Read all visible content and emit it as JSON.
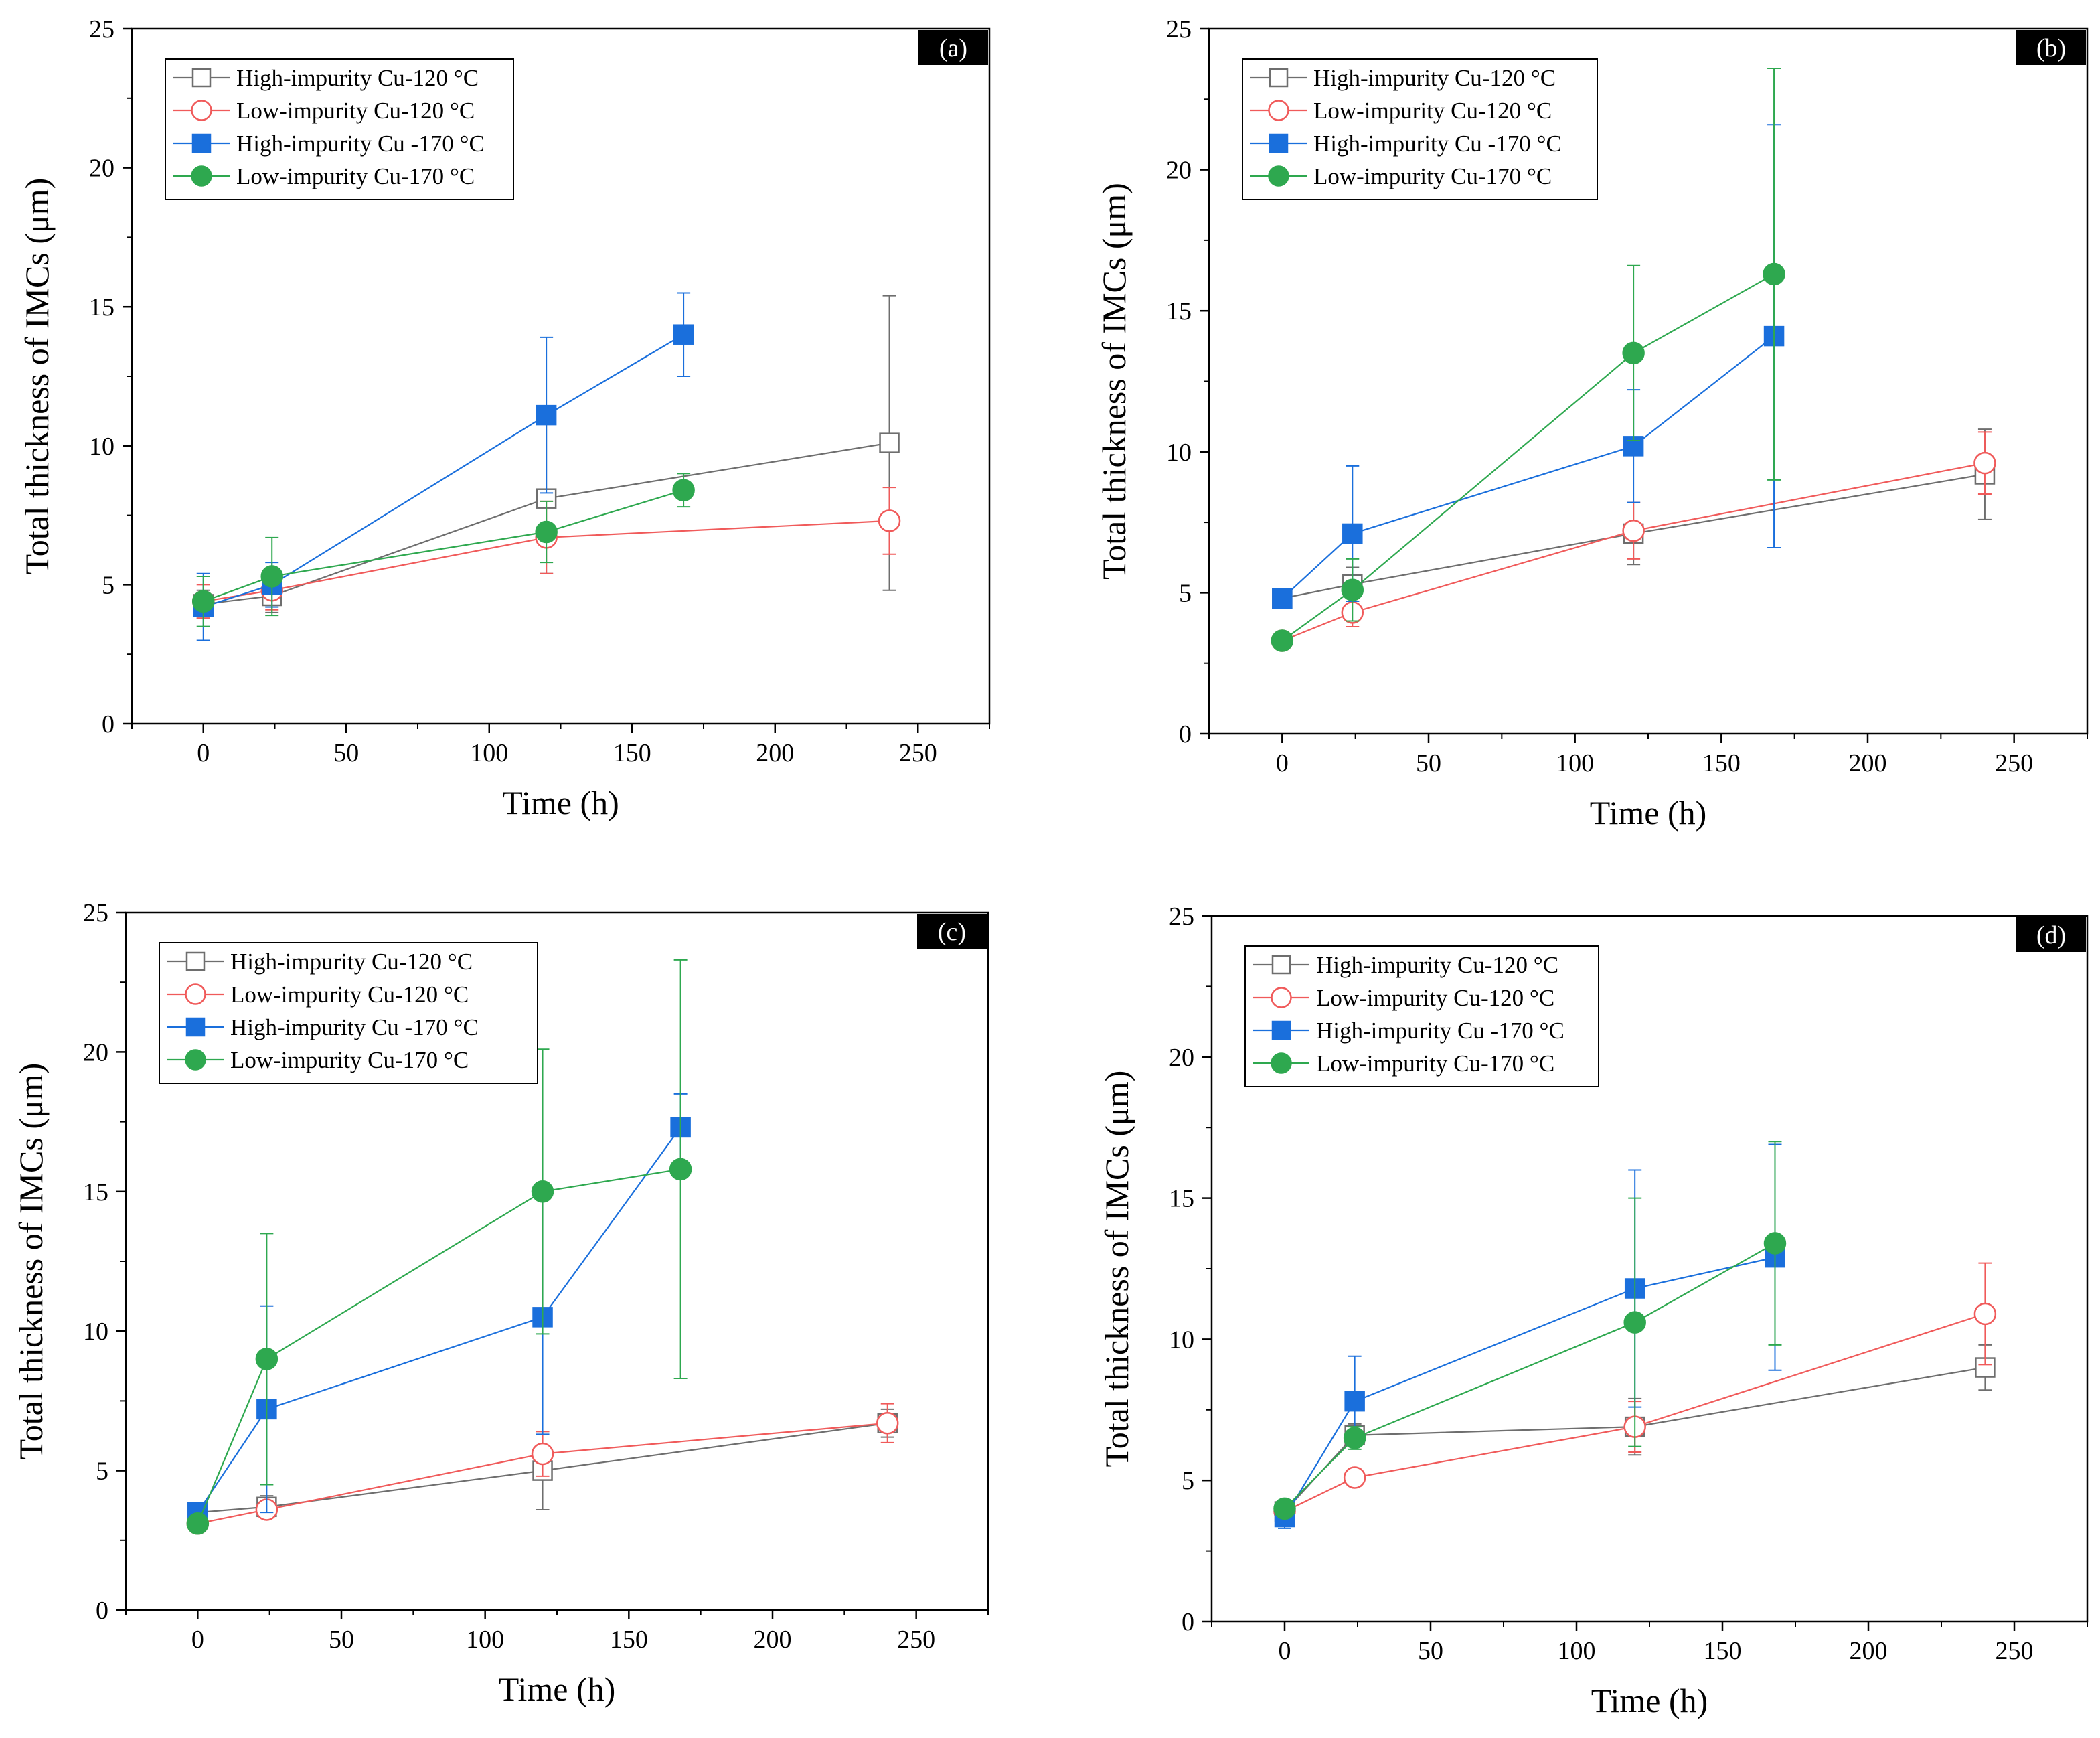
{
  "figure": {
    "series_styles": [
      {
        "marker": "square",
        "filled": false,
        "color": "#6e6e6e"
      },
      {
        "marker": "circle",
        "filled": false,
        "color": "#f05a5a"
      },
      {
        "marker": "square",
        "filled": true,
        "color": "#1a6fdc"
      },
      {
        "marker": "circle",
        "filled": true,
        "color": "#2ea84f"
      }
    ],
    "tag_background": "#000000"
  },
  "chart_data": [
    {
      "type": "line",
      "panel_label": "(a)",
      "xlabel": "Time (h)",
      "ylabel": "Total thickness of IMCs (μm)",
      "xlim": [
        -25,
        275
      ],
      "ylim": [
        0,
        25
      ],
      "xticks": [
        0,
        50,
        100,
        150,
        200,
        250
      ],
      "yticks": [
        0,
        5,
        10,
        15,
        20,
        25
      ],
      "legend_position": "top-left",
      "series": [
        {
          "name": "High-impurity Cu-120 °C",
          "x": [
            0,
            24,
            120,
            240
          ],
          "y": [
            4.3,
            4.6,
            8.1,
            10.1
          ],
          "err": [
            0.5,
            0.6,
            2.7,
            5.3
          ]
        },
        {
          "name": "Low-impurity Cu-120 °C",
          "x": [
            0,
            24,
            120,
            240
          ],
          "y": [
            4.4,
            4.8,
            6.7,
            7.3
          ],
          "err": [
            0.6,
            0.7,
            1.3,
            1.2
          ]
        },
        {
          "name": "High-impurity Cu -170 °C",
          "x": [
            0,
            24,
            120,
            168
          ],
          "y": [
            4.2,
            5.0,
            11.1,
            14.0
          ],
          "err": [
            1.2,
            0.8,
            2.8,
            1.5
          ]
        },
        {
          "name": "Low-impurity Cu-170 °C",
          "x": [
            0,
            24,
            120,
            168
          ],
          "y": [
            4.4,
            5.3,
            6.9,
            8.4
          ],
          "err": [
            0.9,
            1.4,
            1.1,
            0.6
          ]
        }
      ]
    },
    {
      "type": "line",
      "panel_label": "(b)",
      "xlabel": "Time (h)",
      "ylabel": "Total thickness of IMCs (μm)",
      "xlim": [
        -25,
        275
      ],
      "ylim": [
        0,
        25
      ],
      "xticks": [
        0,
        50,
        100,
        150,
        200,
        250
      ],
      "yticks": [
        0,
        5,
        10,
        15,
        20,
        25
      ],
      "legend_position": "top-left",
      "series": [
        {
          "name": "High-impurity Cu-120 °C",
          "x": [
            0,
            24,
            120,
            240
          ],
          "y": [
            4.8,
            5.3,
            7.1,
            9.2
          ],
          "err": [
            0.3,
            0.6,
            1.1,
            1.6
          ]
        },
        {
          "name": "Low-impurity Cu-120 °C",
          "x": [
            0,
            24,
            120,
            240
          ],
          "y": [
            3.3,
            4.3,
            7.2,
            9.6
          ],
          "err": [
            0.2,
            0.5,
            1.0,
            1.1
          ]
        },
        {
          "name": "High-impurity Cu -170 °C",
          "x": [
            0,
            24,
            120,
            168
          ],
          "y": [
            4.8,
            7.1,
            10.2,
            14.1
          ],
          "err": [
            0.3,
            2.4,
            2.0,
            7.5
          ]
        },
        {
          "name": "Low-impurity Cu-170 °C",
          "x": [
            0,
            24,
            120,
            168
          ],
          "y": [
            3.3,
            5.1,
            13.5,
            16.3
          ],
          "err": [
            0.2,
            1.1,
            3.1,
            7.3
          ]
        }
      ]
    },
    {
      "type": "line",
      "panel_label": "(c)",
      "xlabel": "Time (h)",
      "ylabel": "Total thickness of IMCs (μm)",
      "xlim": [
        -25,
        275
      ],
      "ylim": [
        0,
        25
      ],
      "xticks": [
        0,
        50,
        100,
        150,
        200,
        250
      ],
      "yticks": [
        0,
        5,
        10,
        15,
        20,
        25
      ],
      "legend_position": "top-left",
      "series": [
        {
          "name": "High-impurity Cu-120 °C",
          "x": [
            0,
            24,
            120,
            240
          ],
          "y": [
            3.5,
            3.7,
            5.0,
            6.7
          ],
          "err": [
            0.3,
            0.4,
            1.4,
            0.5
          ]
        },
        {
          "name": "Low-impurity Cu-120 °C",
          "x": [
            0,
            24,
            120,
            240
          ],
          "y": [
            3.1,
            3.6,
            5.6,
            6.7
          ],
          "err": [
            0.3,
            0.3,
            0.8,
            0.7
          ]
        },
        {
          "name": "High-impurity Cu -170 °C",
          "x": [
            0,
            24,
            120,
            168
          ],
          "y": [
            3.5,
            7.2,
            10.5,
            17.3
          ],
          "err": [
            0.3,
            3.7,
            4.2,
            1.2
          ]
        },
        {
          "name": "Low-impurity Cu-170 °C",
          "x": [
            0,
            24,
            120,
            168
          ],
          "y": [
            3.1,
            9.0,
            15.0,
            15.8
          ],
          "err": [
            0.3,
            4.5,
            5.1,
            7.5
          ]
        }
      ]
    },
    {
      "type": "line",
      "panel_label": "(d)",
      "xlabel": "Time (h)",
      "ylabel": "Total thickness of IMCs (μm)",
      "xlim": [
        -25,
        275
      ],
      "ylim": [
        0,
        25
      ],
      "xticks": [
        0,
        50,
        100,
        150,
        200,
        250
      ],
      "yticks": [
        0,
        5,
        10,
        15,
        20,
        25
      ],
      "legend_position": "top-left",
      "series": [
        {
          "name": "High-impurity Cu-120 °C",
          "x": [
            0,
            24,
            120,
            240
          ],
          "y": [
            3.9,
            6.6,
            6.9,
            9.0
          ],
          "err": [
            0.3,
            0.4,
            1.0,
            0.8
          ]
        },
        {
          "name": "Low-impurity Cu-120 °C",
          "x": [
            0,
            24,
            120,
            240
          ],
          "y": [
            3.9,
            5.1,
            6.9,
            10.9
          ],
          "err": [
            0.3,
            0.3,
            0.9,
            1.8
          ]
        },
        {
          "name": "High-impurity Cu -170 °C",
          "x": [
            0,
            24,
            120,
            168
          ],
          "y": [
            3.7,
            7.8,
            11.8,
            12.9
          ],
          "err": [
            0.4,
            1.6,
            4.2,
            4.0
          ]
        },
        {
          "name": "Low-impurity Cu-170 °C",
          "x": [
            0,
            24,
            120,
            168
          ],
          "y": [
            4.0,
            6.5,
            10.6,
            13.4
          ],
          "err": [
            0.3,
            0.4,
            4.4,
            3.6
          ]
        }
      ]
    }
  ]
}
